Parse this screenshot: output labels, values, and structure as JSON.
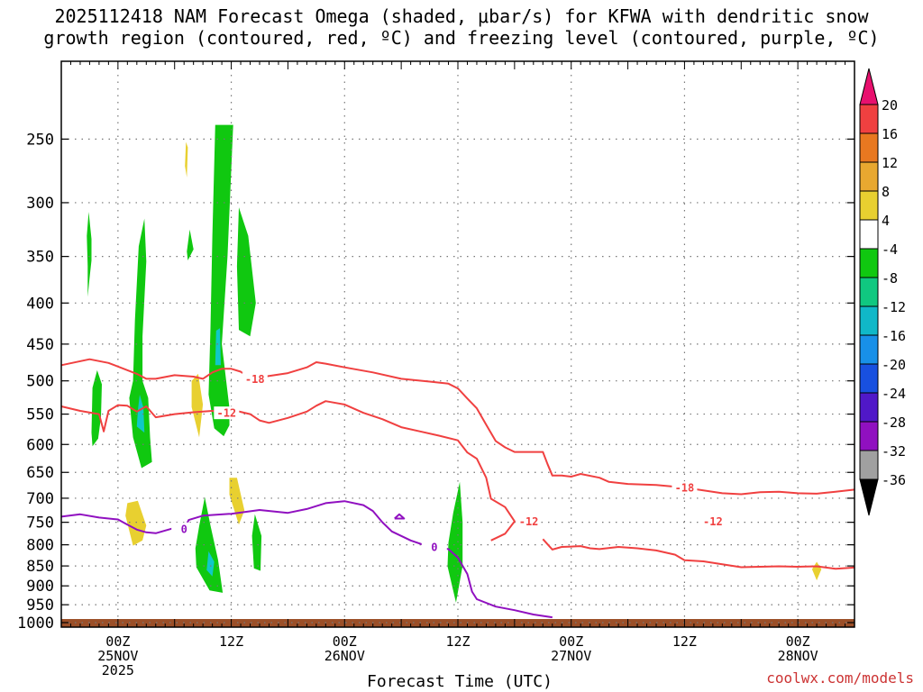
{
  "title_lines": [
    "2025112418 NAM Forecast Omega (shaded, μbar/s) for KFWA with dendritic snow",
    "growth region (contoured, red, ºC) and freezing level (contoured, purple, ºC)"
  ],
  "credit": "coolwx.com/models",
  "chart_data": {
    "type": "time-height cross section",
    "title": "2025112418 NAM Forecast Omega (shaded, μbar/s) for KFWA with dendritic snow growth region (contoured, red, ºC) and freezing level (contoured, purple, ºC)",
    "xlabel": "Forecast Time (UTC)",
    "ylabel": "",
    "x_unit": "forecast hour from 2025112418",
    "xlim": [
      0,
      84
    ],
    "y_unit": "hPa",
    "ylim": [
      1013,
      200
    ],
    "y_ticks": [
      250,
      300,
      350,
      400,
      450,
      500,
      550,
      600,
      650,
      700,
      750,
      800,
      850,
      900,
      950,
      1000
    ],
    "x_ticks": [
      {
        "hour": 6,
        "lines": [
          "00Z",
          "25NOV",
          "2025"
        ]
      },
      {
        "hour": 18,
        "lines": [
          "12Z"
        ]
      },
      {
        "hour": 30,
        "lines": [
          "00Z",
          "26NOV"
        ]
      },
      {
        "hour": 42,
        "lines": [
          "12Z"
        ]
      },
      {
        "hour": 54,
        "lines": [
          "00Z",
          "27NOV"
        ]
      },
      {
        "hour": 66,
        "lines": [
          "12Z"
        ]
      },
      {
        "hour": 78,
        "lines": [
          "00Z",
          "28NOV"
        ]
      }
    ],
    "grid": true,
    "colorbar": {
      "labels": [
        "20",
        "16",
        "12",
        "8",
        "4",
        "-4",
        "-8",
        "-12",
        "-16",
        "-20",
        "-24",
        "-28",
        "-32",
        "-36"
      ],
      "colors": [
        "#e8106e",
        "#f04040",
        "#e87820",
        "#e8a830",
        "#e8d030",
        "#ffffff",
        "#10c810",
        "#10c880",
        "#10b8c8",
        "#1890e8",
        "#1850e0",
        "#5018c8",
        "#9010c0",
        "#a0a0a0",
        "#000000"
      ]
    },
    "contours": [
      {
        "name": "-18",
        "color": "#f04040",
        "label_at_hour": [
          20.5,
          66
        ],
        "points": [
          [
            0,
            478
          ],
          [
            3,
            470
          ],
          [
            5,
            475
          ],
          [
            8,
            490
          ],
          [
            9,
            497
          ],
          [
            10,
            497
          ],
          [
            12,
            492
          ],
          [
            14,
            494
          ],
          [
            15,
            497
          ],
          [
            16,
            488
          ],
          [
            17,
            483
          ],
          [
            18,
            483
          ],
          [
            19,
            487
          ],
          [
            20,
            497
          ],
          [
            24,
            489
          ],
          [
            26,
            481
          ],
          [
            27,
            474
          ],
          [
            28,
            476
          ],
          [
            30,
            481
          ],
          [
            33,
            488
          ],
          [
            36,
            497
          ],
          [
            39,
            501
          ],
          [
            41,
            504
          ],
          [
            42,
            511
          ],
          [
            43,
            526
          ],
          [
            44,
            541
          ],
          [
            45,
            567
          ],
          [
            46,
            594
          ],
          [
            47,
            605
          ],
          [
            48,
            613
          ],
          [
            49,
            613
          ],
          [
            50,
            613
          ],
          [
            51,
            613
          ],
          [
            51.5,
            635
          ],
          [
            52,
            656
          ],
          [
            53,
            656
          ],
          [
            54,
            658
          ],
          [
            55,
            653
          ],
          [
            57,
            660
          ],
          [
            58,
            668
          ],
          [
            60,
            672
          ],
          [
            63,
            674
          ],
          [
            66,
            679
          ],
          [
            70,
            690
          ],
          [
            72,
            692
          ],
          [
            74,
            688
          ],
          [
            76,
            687
          ],
          [
            78,
            690
          ],
          [
            80,
            691
          ],
          [
            82,
            687
          ],
          [
            84,
            683
          ]
        ]
      },
      {
        "name": "-12",
        "color": "#f04040",
        "label_at_hour": [
          17.5,
          49.5,
          69
        ],
        "points": [
          [
            0,
            538
          ],
          [
            2,
            545
          ],
          [
            4,
            550
          ],
          [
            4.5,
            578
          ],
          [
            5,
            545
          ],
          [
            6,
            536
          ],
          [
            7,
            537
          ],
          [
            8,
            546
          ],
          [
            9,
            538
          ],
          [
            10,
            555
          ],
          [
            12,
            550
          ],
          [
            14,
            547
          ],
          [
            16,
            545
          ],
          [
            17,
            548
          ],
          [
            18,
            543
          ],
          [
            20,
            550
          ],
          [
            21,
            560
          ],
          [
            22,
            564
          ],
          [
            24,
            556
          ],
          [
            26,
            546
          ],
          [
            27,
            537
          ],
          [
            28,
            530
          ],
          [
            30,
            535
          ],
          [
            32,
            548
          ],
          [
            34,
            558
          ],
          [
            36,
            571
          ],
          [
            38,
            578
          ],
          [
            40,
            585
          ],
          [
            42,
            593
          ],
          [
            43,
            614
          ],
          [
            44,
            625
          ],
          [
            45,
            660
          ],
          [
            45.5,
            701
          ],
          [
            47,
            718
          ],
          [
            48,
            748
          ],
          [
            47,
            775
          ],
          [
            45.5,
            790
          ]
        ]
      },
      {
        "name": "-12",
        "color": "#f04040",
        "points": [
          [
            51,
            787
          ],
          [
            52,
            811
          ],
          [
            53,
            805
          ],
          [
            54,
            804
          ],
          [
            55,
            803
          ],
          [
            56,
            808
          ],
          [
            57,
            810
          ],
          [
            59,
            805
          ],
          [
            61,
            808
          ],
          [
            63,
            813
          ],
          [
            65,
            823
          ],
          [
            66,
            836
          ],
          [
            68,
            839
          ],
          [
            70,
            846
          ],
          [
            72,
            853
          ],
          [
            74,
            852
          ],
          [
            76,
            851
          ],
          [
            78,
            852
          ],
          [
            80,
            851
          ],
          [
            82,
            857
          ],
          [
            84,
            854
          ]
        ]
      },
      {
        "name": "0",
        "color": "#9010c0",
        "label_at_hour": [
          13,
          39.5
        ],
        "points": [
          [
            0,
            738
          ],
          [
            2,
            733
          ],
          [
            4,
            740
          ],
          [
            6,
            744
          ],
          [
            7,
            755
          ],
          [
            8,
            766
          ],
          [
            9,
            772
          ],
          [
            10,
            774
          ],
          [
            12,
            762
          ],
          [
            13,
            764
          ],
          [
            13.5,
            745
          ],
          [
            15,
            736
          ],
          [
            18,
            732
          ],
          [
            21,
            724
          ],
          [
            24,
            730
          ],
          [
            26,
            722
          ],
          [
            28,
            710
          ],
          [
            30,
            706
          ],
          [
            32,
            714
          ],
          [
            33,
            726
          ],
          [
            34,
            750
          ],
          [
            35,
            770
          ],
          [
            37,
            790
          ],
          [
            39,
            805
          ],
          [
            41,
            810
          ],
          [
            42,
            830
          ],
          [
            43,
            870
          ],
          [
            43.5,
            915
          ],
          [
            44,
            935
          ],
          [
            46,
            955
          ],
          [
            48,
            965
          ],
          [
            50,
            977
          ],
          [
            52,
            985
          ]
        ]
      },
      {
        "name": "0",
        "color": "#9010c0",
        "points": [
          [
            35.3,
            742
          ],
          [
            35.8,
            733
          ],
          [
            36.3,
            742
          ],
          [
            35.3,
            742
          ]
        ]
      }
    ],
    "omega_regions": [
      {
        "fill": "#10c810",
        "value_range": [
          -8,
          -4
        ],
        "outline": [
          [
            2.8,
            393
          ],
          [
            3,
            372
          ],
          [
            3.2,
            354
          ],
          [
            3.2,
            333
          ],
          [
            2.9,
            308
          ],
          [
            2.7,
            330
          ],
          [
            2.8,
            360
          ]
        ]
      },
      {
        "fill": "#10c810",
        "value_range": [
          -8,
          -4
        ],
        "outline": [
          [
            3.3,
            603
          ],
          [
            3.9,
            590
          ],
          [
            4.2,
            555
          ],
          [
            4.3,
            505
          ],
          [
            3.8,
            485
          ],
          [
            3.3,
            510
          ],
          [
            3.2,
            580
          ]
        ]
      },
      {
        "fill": "#10c810",
        "value_range": [
          -8,
          -4
        ],
        "outline": [
          [
            7.6,
            588
          ],
          [
            8.5,
            642
          ],
          [
            9.6,
            631
          ],
          [
            9.4,
            588
          ],
          [
            9.2,
            525
          ],
          [
            8.6,
            500
          ],
          [
            8.6,
            440
          ],
          [
            9.0,
            355
          ],
          [
            8.8,
            314
          ],
          [
            8.2,
            340
          ],
          [
            7.8,
            420
          ],
          [
            7.6,
            500
          ],
          [
            7.2,
            525
          ]
        ]
      },
      {
        "fill": "#10c8c8",
        "value_range": [
          -16,
          -8
        ],
        "outline": [
          [
            8.0,
            570
          ],
          [
            8.8,
            580
          ],
          [
            8.7,
            540
          ],
          [
            8.3,
            520
          ],
          [
            8.1,
            545
          ]
        ]
      },
      {
        "fill": "#10c810",
        "value_range": [
          -8,
          -4
        ],
        "outline": [
          [
            14.0,
            343
          ],
          [
            13.6,
            324
          ],
          [
            13.3,
            345
          ],
          [
            13.4,
            354
          ]
        ]
      },
      {
        "fill": "#10c810",
        "value_range": [
          -8,
          -4
        ],
        "outline": [
          [
            16.2,
            573
          ],
          [
            17.2,
            586
          ],
          [
            17.8,
            568
          ],
          [
            17.8,
            540
          ],
          [
            17.0,
            450
          ],
          [
            17.6,
            350
          ],
          [
            18.2,
            240
          ],
          [
            16.3,
            240
          ],
          [
            16.0,
            330
          ],
          [
            15.8,
            430
          ],
          [
            15.6,
            520
          ]
        ]
      },
      {
        "fill": "#10c8c8",
        "value_range": [
          -16,
          -8
        ],
        "outline": [
          [
            16.3,
            478
          ],
          [
            16.9,
            478
          ],
          [
            16.8,
            430
          ],
          [
            16.4,
            433
          ]
        ]
      },
      {
        "fill": "#10c810",
        "value_range": [
          -8,
          -4
        ],
        "outline": [
          [
            18.8,
            432
          ],
          [
            20.0,
            440
          ],
          [
            20.6,
            400
          ],
          [
            19.8,
            330
          ],
          [
            18.8,
            304
          ],
          [
            18.6,
            360
          ]
        ]
      },
      {
        "fill": "#10c810",
        "value_range": [
          -8,
          -4
        ],
        "outline": [
          [
            14.3,
            853
          ],
          [
            15.7,
            912
          ],
          [
            17.1,
            918
          ],
          [
            16.6,
            835
          ],
          [
            15.8,
            757
          ],
          [
            15.2,
            698
          ],
          [
            14.6,
            758
          ],
          [
            14.2,
            808
          ]
        ]
      },
      {
        "fill": "#10c8c8",
        "value_range": [
          -16,
          -8
        ],
        "outline": [
          [
            15.4,
            860
          ],
          [
            16.0,
            876
          ],
          [
            16.2,
            840
          ],
          [
            15.6,
            815
          ]
        ]
      },
      {
        "fill": "#10c810",
        "value_range": [
          -8,
          -4
        ],
        "outline": [
          [
            20.4,
            856
          ],
          [
            21.1,
            862
          ],
          [
            21.2,
            780
          ],
          [
            20.5,
            733
          ],
          [
            20.2,
            780
          ]
        ]
      },
      {
        "fill": "#10c810",
        "value_range": [
          -8,
          -4
        ],
        "outline": [
          [
            40.9,
            851
          ],
          [
            41.8,
            944
          ],
          [
            42.5,
            850
          ],
          [
            42.5,
            750
          ],
          [
            42.2,
            668
          ],
          [
            41.5,
            730
          ],
          [
            41.0,
            795
          ]
        ]
      },
      {
        "fill": "#e8d030",
        "value_range": [
          4,
          8
        ],
        "outline": [
          [
            6.8,
            736
          ],
          [
            7.6,
            802
          ],
          [
            8.6,
            790
          ],
          [
            9.0,
            757
          ],
          [
            8.1,
            705
          ],
          [
            7.0,
            710
          ]
        ]
      },
      {
        "fill": "#e8d030",
        "value_range": [
          4,
          8
        ],
        "outline": [
          [
            13.8,
            539
          ],
          [
            14.6,
            588
          ],
          [
            15.0,
            535
          ],
          [
            14.5,
            490
          ],
          [
            13.8,
            500
          ]
        ]
      },
      {
        "fill": "#e8d030",
        "value_range": [
          4,
          8
        ],
        "outline": [
          [
            17.8,
            693
          ],
          [
            18.8,
            755
          ],
          [
            19.4,
            725
          ],
          [
            18.6,
            660
          ],
          [
            17.8,
            660
          ]
        ]
      },
      {
        "fill": "#e8d030",
        "value_range": [
          4,
          8
        ],
        "outline": [
          [
            13.1,
            270
          ],
          [
            13.3,
            279
          ],
          [
            13.4,
            256
          ],
          [
            13.2,
            252
          ]
        ]
      },
      {
        "fill": "#e8d030",
        "value_range": [
          4,
          8
        ],
        "outline": [
          [
            79.5,
            858
          ],
          [
            80.0,
            886
          ],
          [
            80.5,
            858
          ],
          [
            80.0,
            840
          ]
        ]
      }
    ],
    "ground": {
      "color": "#9b4f28"
    }
  }
}
